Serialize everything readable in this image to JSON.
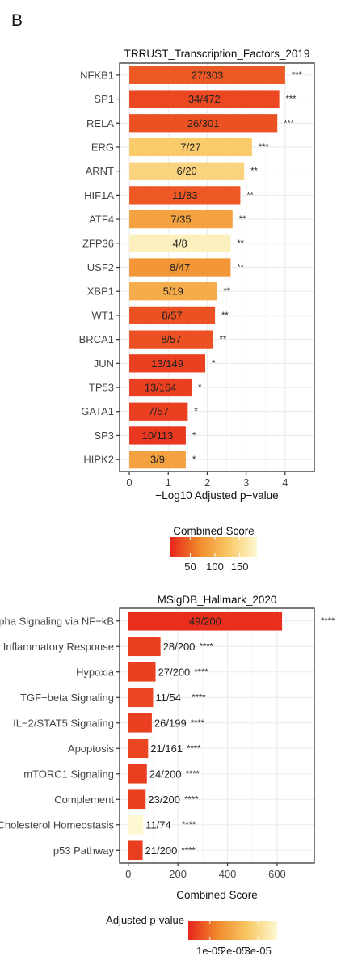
{
  "panel_label": "B",
  "chart_data": [
    {
      "type": "bar",
      "orientation": "horizontal",
      "title": "TRRUST_Transcription_Factors_2019",
      "xlabel": "−Log10 Adjusted p−value",
      "ylabel": "",
      "xlim": [
        -0.25,
        4.75
      ],
      "xticks": [
        0,
        1,
        2,
        3,
        4
      ],
      "xtick_labels": [
        "0",
        "1",
        "2",
        "3",
        "4"
      ],
      "grid": true,
      "categories": [
        "NFKB1",
        "SP1",
        "RELA",
        "ERG",
        "ARNT",
        "HIF1A",
        "ATF4",
        "ZFP36",
        "USF2",
        "XBP1",
        "WT1",
        "BRCA1",
        "JUN",
        "TP53",
        "GATA1",
        "SP3",
        "HIPK2"
      ],
      "values": [
        4.0,
        3.85,
        3.8,
        3.15,
        2.95,
        2.85,
        2.65,
        2.6,
        2.6,
        2.25,
        2.2,
        2.15,
        1.95,
        1.6,
        1.5,
        1.45,
        1.45
      ],
      "bar_labels": [
        "27/303",
        "34/472",
        "26/301",
        "7/27",
        "6/20",
        "11/83",
        "7/35",
        "4/8",
        "8/47",
        "5/19",
        "8/57",
        "8/57",
        "13/149",
        "13/164",
        "7/57",
        "10/113",
        "3/9"
      ],
      "significance": [
        "***",
        "***",
        "***",
        "***",
        "**",
        "**",
        "**",
        "**",
        "**",
        "**",
        "**",
        "**",
        "*",
        "*",
        "*",
        "*",
        "*"
      ],
      "color_values": [
        40,
        30,
        35,
        130,
        140,
        40,
        90,
        175,
        80,
        100,
        35,
        35,
        25,
        25,
        25,
        20,
        90
      ],
      "legend": {
        "title": "Combined Score",
        "ticks": [
          50,
          100,
          150
        ],
        "tick_labels": [
          "50",
          "100",
          "150"
        ],
        "range": [
          10,
          185
        ],
        "colors": [
          "#e8261d",
          "#f08a2c",
          "#f9c865",
          "#fdf8d2"
        ],
        "placement": "bottom"
      }
    },
    {
      "type": "bar",
      "orientation": "horizontal",
      "title": "MSigDB_Hallmark_2020",
      "xlabel": "Combined Score",
      "ylabel": "",
      "xlim": [
        -35,
        750
      ],
      "xticks": [
        0,
        200,
        400,
        600
      ],
      "xtick_labels": [
        "0",
        "200",
        "400",
        "600"
      ],
      "grid": true,
      "categories": [
        "TNF−alpha Signaling via NF−kB",
        "Inflammatory Response",
        "Hypoxia",
        "TGF−beta Signaling",
        "IL−2/STAT5 Signaling",
        "Apoptosis",
        "mTORC1 Signaling",
        "Complement",
        "Cholesterol Homeostasis",
        "p53 Pathway"
      ],
      "values": [
        620,
        130,
        110,
        100,
        95,
        80,
        75,
        70,
        60,
        58
      ],
      "bar_labels": [
        "49/200",
        "28/200",
        "27/200",
        "11/54",
        "26/199",
        "21/161",
        "24/200",
        "23/200",
        "11/74",
        "21/200"
      ],
      "significance": [
        "****",
        "****",
        "****",
        "****",
        "****",
        "****",
        "****",
        "****",
        "****",
        "****"
      ],
      "color_values": [
        2e-06,
        4e-06,
        4e-06,
        5e-06,
        4e-06,
        5e-06,
        4e-06,
        4e-06,
        3.8e-05,
        4e-06
      ],
      "legend": {
        "title": "Adjusted p-value",
        "ticks": [
          1e-05,
          2e-05,
          3e-05
        ],
        "tick_labels": [
          "1e-05",
          "2e-05",
          "3e-05"
        ],
        "range": [
          1e-06,
          3.8e-05
        ],
        "colors": [
          "#e8261d",
          "#f08a2c",
          "#f9c865",
          "#fdf8d2"
        ],
        "placement": "bottom"
      }
    }
  ]
}
